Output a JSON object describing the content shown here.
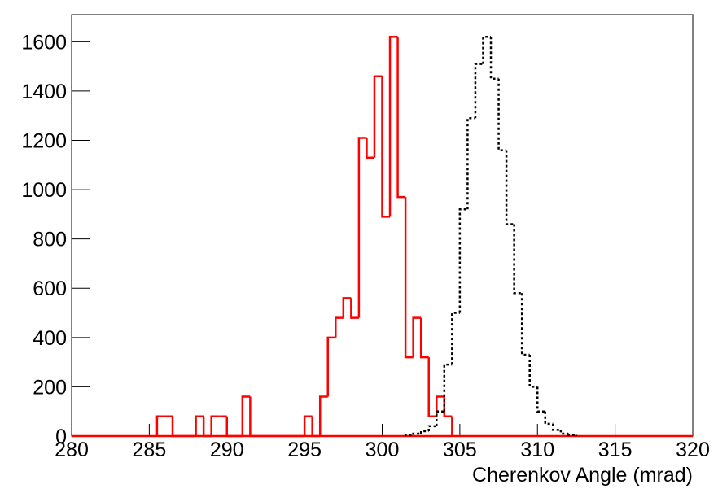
{
  "chart_data": {
    "type": "histogram",
    "xlabel": "Cherenkov Angle (mrad)",
    "xlim": [
      280,
      320
    ],
    "ylim": [
      0,
      1710
    ],
    "xticks": [
      280,
      285,
      290,
      295,
      300,
      305,
      310,
      315,
      320
    ],
    "yticks": [
      0,
      200,
      400,
      600,
      800,
      1000,
      1200,
      1400,
      1600
    ],
    "series": [
      {
        "color": "#ff0000",
        "line_style": "solid",
        "bins": [
          285.5,
          286,
          286.5,
          287,
          287.5,
          288,
          288.5,
          289,
          289.5,
          290,
          290.5,
          291,
          291.5,
          292,
          292.5,
          293,
          293.5,
          294,
          294.5,
          295,
          295.5,
          296,
          296.5,
          297,
          297.5,
          298,
          298.5,
          299,
          299.5,
          300,
          300.5,
          301,
          301.5,
          302,
          302.5,
          303,
          303.5,
          304,
          304.5
        ],
        "values": [
          80,
          80,
          0,
          0,
          0,
          80,
          0,
          80,
          80,
          0,
          0,
          160,
          0,
          0,
          0,
          0,
          0,
          0,
          0,
          80,
          0,
          160,
          400,
          480,
          560,
          480,
          1210,
          1130,
          1460,
          890,
          1620,
          970,
          320,
          480,
          320,
          80,
          160,
          80
        ]
      },
      {
        "color": "#000000",
        "line_style": "dotted",
        "bins": [
          301.5,
          302,
          302.5,
          303,
          303.5,
          304,
          304.5,
          305,
          305.5,
          306,
          306.5,
          307,
          307.5,
          308,
          308.5,
          309,
          309.5,
          310,
          310.5,
          311,
          311.5,
          312,
          312.5
        ],
        "values": [
          5,
          10,
          20,
          40,
          100,
          290,
          500,
          920,
          1290,
          1510,
          1620,
          1450,
          1160,
          860,
          580,
          330,
          200,
          100,
          50,
          25,
          10,
          5
        ]
      }
    ]
  }
}
